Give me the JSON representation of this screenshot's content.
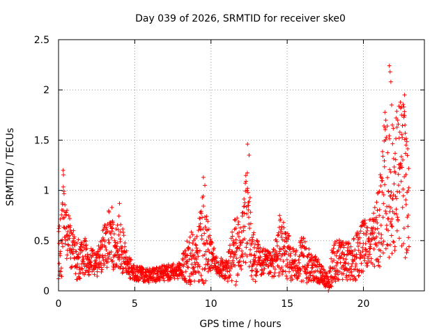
{
  "chart_data": {
    "type": "scatter",
    "title": "Day 039 of 2026, SRMTID for receiver ske0",
    "xlabel": "GPS time / hours",
    "ylabel": "SRMTID / TECUs",
    "xlim": [
      0,
      24
    ],
    "ylim": [
      0,
      2.5
    ],
    "x_ticks": [
      0,
      5,
      10,
      15,
      20
    ],
    "y_ticks": [
      0,
      0.5,
      1,
      1.5,
      2,
      2.5
    ],
    "x_tick_labels": [
      "0",
      "5",
      "10",
      "15",
      "20"
    ],
    "y_tick_labels": [
      "0",
      "0.5",
      "1",
      "1.5",
      "2",
      "2.5"
    ],
    "grid": true,
    "marker": "+",
    "color": "#ff0000",
    "series": [
      {
        "name": "ske0",
        "description_of_trend": "points sampled from envelope",
        "envelope": [
          [
            0.0,
            0.35,
            0.25
          ],
          [
            0.2,
            0.45,
            0.35
          ],
          [
            0.3,
            0.85,
            0.35
          ],
          [
            0.5,
            0.6,
            0.3
          ],
          [
            0.8,
            0.45,
            0.25
          ],
          [
            1.2,
            0.3,
            0.2
          ],
          [
            1.7,
            0.35,
            0.2
          ],
          [
            2.0,
            0.3,
            0.15
          ],
          [
            2.5,
            0.25,
            0.12
          ],
          [
            3.0,
            0.45,
            0.25
          ],
          [
            3.3,
            0.55,
            0.3
          ],
          [
            3.7,
            0.4,
            0.2
          ],
          [
            4.0,
            0.5,
            0.3
          ],
          [
            4.5,
            0.25,
            0.12
          ],
          [
            5.0,
            0.18,
            0.08
          ],
          [
            6.0,
            0.15,
            0.07
          ],
          [
            7.0,
            0.18,
            0.08
          ],
          [
            8.0,
            0.2,
            0.08
          ],
          [
            8.7,
            0.35,
            0.3
          ],
          [
            9.0,
            0.3,
            0.2
          ],
          [
            9.5,
            0.5,
            0.5
          ],
          [
            10.0,
            0.35,
            0.15
          ],
          [
            10.5,
            0.25,
            0.1
          ],
          [
            11.0,
            0.2,
            0.1
          ],
          [
            11.6,
            0.4,
            0.4
          ],
          [
            12.0,
            0.45,
            0.25
          ],
          [
            12.4,
            0.8,
            0.55
          ],
          [
            12.7,
            0.35,
            0.3
          ],
          [
            13.2,
            0.3,
            0.15
          ],
          [
            14.0,
            0.25,
            0.12
          ],
          [
            14.6,
            0.45,
            0.3
          ],
          [
            15.0,
            0.35,
            0.25
          ],
          [
            15.5,
            0.25,
            0.15
          ],
          [
            16.0,
            0.3,
            0.25
          ],
          [
            16.5,
            0.25,
            0.15
          ],
          [
            17.0,
            0.2,
            0.12
          ],
          [
            17.7,
            0.08,
            0.06
          ],
          [
            18.0,
            0.3,
            0.25
          ],
          [
            18.5,
            0.3,
            0.2
          ],
          [
            19.0,
            0.3,
            0.2
          ],
          [
            19.5,
            0.35,
            0.25
          ],
          [
            20.0,
            0.45,
            0.25
          ],
          [
            20.5,
            0.5,
            0.25
          ],
          [
            21.0,
            0.6,
            0.4
          ],
          [
            21.4,
            1.1,
            0.7
          ],
          [
            21.8,
            0.9,
            0.6
          ],
          [
            22.3,
            1.2,
            0.75
          ],
          [
            22.7,
            1.1,
            0.8
          ],
          [
            23.0,
            0.8,
            0.4
          ]
        ]
      }
    ],
    "notable_points": [
      {
        "x": 0.3,
        "y": 1.2
      },
      {
        "x": 3.5,
        "y": 0.83
      },
      {
        "x": 4.0,
        "y": 0.87
      },
      {
        "x": 9.5,
        "y": 1.13
      },
      {
        "x": 9.6,
        "y": 1.05
      },
      {
        "x": 12.4,
        "y": 1.46
      },
      {
        "x": 12.5,
        "y": 1.35
      },
      {
        "x": 14.5,
        "y": 0.75
      },
      {
        "x": 17.7,
        "y": 0.0
      },
      {
        "x": 21.7,
        "y": 2.24
      },
      {
        "x": 21.75,
        "y": 2.18
      },
      {
        "x": 21.8,
        "y": 2.08
      },
      {
        "x": 21.85,
        "y": 1.85
      },
      {
        "x": 21.9,
        "y": 1.65
      },
      {
        "x": 22.7,
        "y": 1.95
      },
      {
        "x": 22.65,
        "y": 1.83
      },
      {
        "x": 22.5,
        "y": 1.75
      },
      {
        "x": 22.8,
        "y": 1.45
      }
    ]
  }
}
